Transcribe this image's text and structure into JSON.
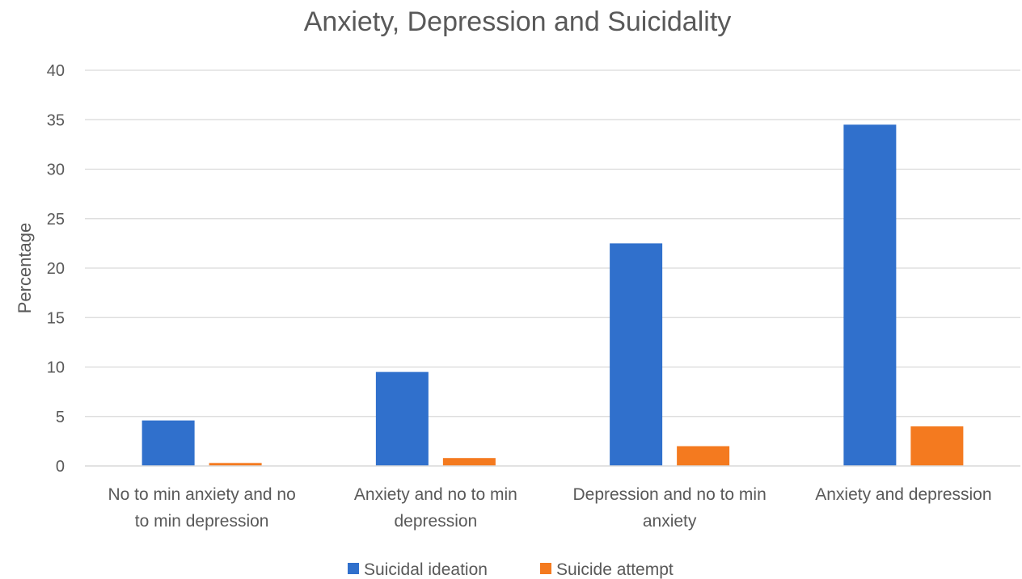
{
  "chart_data": {
    "type": "bar",
    "title": "Anxiety, Depression and Suicidality",
    "ylabel": "Percentage",
    "xlabel": "",
    "ylim": [
      0,
      40
    ],
    "yticks": [
      0,
      5,
      10,
      15,
      20,
      25,
      30,
      35,
      40
    ],
    "grid": true,
    "legend_position": "bottom",
    "categories": [
      [
        "No to min anxiety and no",
        "to min depression"
      ],
      [
        "Anxiety and no to min",
        "depression"
      ],
      [
        "Depression and no to min",
        "anxiety"
      ],
      [
        "Anxiety and depression"
      ]
    ],
    "series": [
      {
        "name": "Suicidal ideation",
        "color": "#3070CC",
        "values": [
          4.6,
          9.5,
          22.5,
          34.5
        ]
      },
      {
        "name": "Suicide attempt",
        "color": "#F47A1F",
        "values": [
          0.3,
          0.8,
          2.0,
          4.0
        ]
      }
    ]
  }
}
